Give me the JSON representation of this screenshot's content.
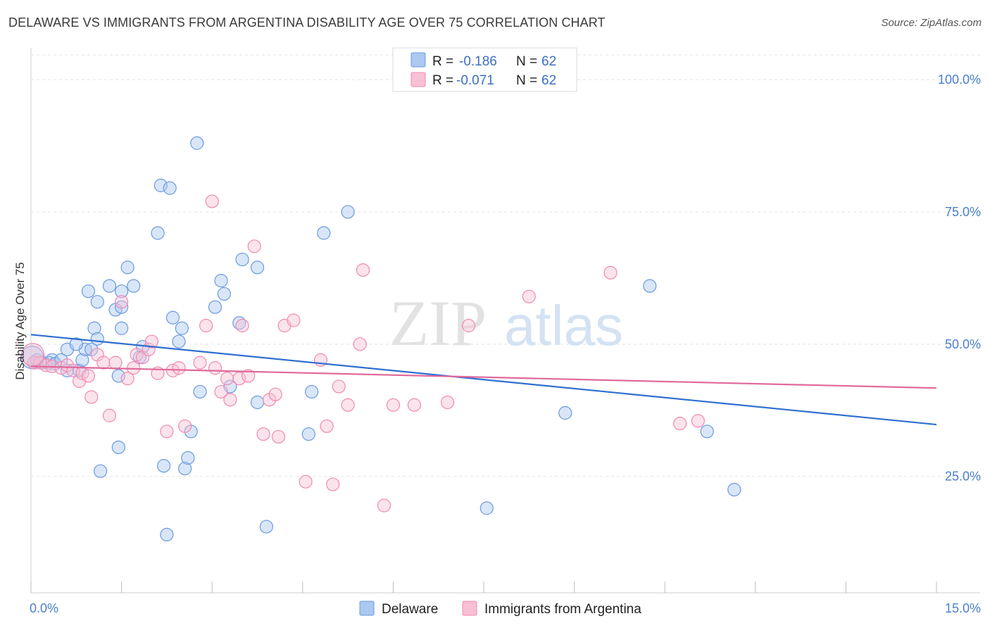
{
  "title": "DELAWARE VS IMMIGRANTS FROM ARGENTINA DISABILITY AGE OVER 75 CORRELATION CHART",
  "source": "Source: ZipAtlas.com",
  "watermark": {
    "zip": "ZIP",
    "atlas": "atlas"
  },
  "chart_data": {
    "type": "scatter",
    "ylabel": "Disability Age Over 75",
    "xlim": [
      0,
      15
    ],
    "ylim": [
      3,
      106
    ],
    "x_tick_labels": [
      {
        "value": 0,
        "label": "0.0%"
      },
      {
        "value": 15,
        "label": "15.0%"
      }
    ],
    "y_tick_labels": [
      {
        "value": 25,
        "label": "25.0%"
      },
      {
        "value": 50,
        "label": "50.0%"
      },
      {
        "value": 75,
        "label": "75.0%"
      },
      {
        "value": 100,
        "label": "100.0%"
      }
    ],
    "legend": [
      {
        "r_label": "R =",
        "r_value": "-0.186",
        "n_label": "N =",
        "n_value": "62"
      },
      {
        "r_label": "R =",
        "r_value": "-0.071",
        "n_label": "N =",
        "n_value": "62"
      }
    ],
    "series": [
      {
        "name": "Delaware",
        "color": "#6a9be0",
        "fill": "#aac8f0",
        "line_color": "#2f6fd0",
        "trend": {
          "x": [
            0,
            15
          ],
          "y": [
            51.8,
            34.8
          ]
        },
        "points": [
          [
            0.05,
            46.5
          ],
          [
            0.1,
            47.0
          ],
          [
            0.2,
            46.5
          ],
          [
            0.3,
            46.5
          ],
          [
            0.35,
            47
          ],
          [
            0.4,
            46.3
          ],
          [
            0.6,
            45
          ],
          [
            0.5,
            47
          ],
          [
            0.6,
            49
          ],
          [
            0.8,
            45
          ],
          [
            0.85,
            47
          ],
          [
            0.9,
            49
          ],
          [
            1.0,
            49
          ],
          [
            0.75,
            50
          ],
          [
            1.05,
            53
          ],
          [
            1.1,
            51
          ],
          [
            1.1,
            58
          ],
          [
            0.95,
            60
          ],
          [
            1.3,
            61
          ],
          [
            1.4,
            56.5
          ],
          [
            1.5,
            53
          ],
          [
            1.5,
            60
          ],
          [
            1.6,
            64.5
          ],
          [
            1.7,
            61
          ],
          [
            1.8,
            47.5
          ],
          [
            1.85,
            49.5
          ],
          [
            1.5,
            57
          ],
          [
            1.45,
            44
          ],
          [
            1.45,
            30.5
          ],
          [
            1.15,
            26
          ],
          [
            2.1,
            71
          ],
          [
            2.15,
            80
          ],
          [
            2.3,
            79.5
          ],
          [
            2.35,
            55
          ],
          [
            2.45,
            50.5
          ],
          [
            2.5,
            53
          ],
          [
            2.2,
            27
          ],
          [
            2.25,
            14
          ],
          [
            2.55,
            26.5
          ],
          [
            2.6,
            28.5
          ],
          [
            2.65,
            33.5
          ],
          [
            2.75,
            88
          ],
          [
            2.8,
            41
          ],
          [
            3.05,
            57
          ],
          [
            3.15,
            62
          ],
          [
            3.2,
            59.5
          ],
          [
            3.3,
            42
          ],
          [
            3.45,
            54
          ],
          [
            3.5,
            66
          ],
          [
            3.75,
            64.5
          ],
          [
            3.75,
            39
          ],
          [
            3.9,
            15.5
          ],
          [
            4.6,
            33
          ],
          [
            4.65,
            41
          ],
          [
            4.85,
            71
          ],
          [
            5.25,
            75
          ],
          [
            7.55,
            19
          ],
          [
            8.85,
            37
          ],
          [
            10.25,
            61
          ],
          [
            11.2,
            33.5
          ],
          [
            11.65,
            22.5
          ],
          [
            0.02,
            47.5
          ]
        ]
      },
      {
        "name": "Immigrants from Argentina",
        "color": "#f08ab0",
        "fill": "#f7c0d4",
        "line_color": "#e0699a",
        "trend": {
          "x": [
            0,
            15
          ],
          "y": [
            45.8,
            41.7
          ]
        },
        "points": [
          [
            0.05,
            46.5
          ],
          [
            0.15,
            46.5
          ],
          [
            0.25,
            46
          ],
          [
            0.35,
            45.8
          ],
          [
            0.5,
            45.5
          ],
          [
            0.6,
            46
          ],
          [
            0.7,
            45
          ],
          [
            0.8,
            43
          ],
          [
            0.85,
            44.5
          ],
          [
            0.95,
            44
          ],
          [
            1.0,
            40
          ],
          [
            1.1,
            48
          ],
          [
            1.2,
            46.5
          ],
          [
            1.3,
            36.5
          ],
          [
            1.4,
            46.5
          ],
          [
            1.5,
            58
          ],
          [
            1.6,
            43.5
          ],
          [
            1.7,
            45.5
          ],
          [
            1.75,
            48
          ],
          [
            1.85,
            47.5
          ],
          [
            1.95,
            49
          ],
          [
            2.0,
            50.5
          ],
          [
            2.1,
            44.5
          ],
          [
            2.25,
            33.5
          ],
          [
            2.35,
            45
          ],
          [
            2.45,
            45.5
          ],
          [
            2.55,
            34.5
          ],
          [
            2.8,
            46.5
          ],
          [
            2.9,
            53.5
          ],
          [
            3.0,
            77
          ],
          [
            3.05,
            45.5
          ],
          [
            3.15,
            41
          ],
          [
            3.25,
            43.5
          ],
          [
            3.3,
            39.5
          ],
          [
            3.45,
            43.5
          ],
          [
            3.5,
            53.5
          ],
          [
            3.6,
            44
          ],
          [
            3.7,
            68.5
          ],
          [
            3.85,
            33
          ],
          [
            3.95,
            39.5
          ],
          [
            4.05,
            40.5
          ],
          [
            4.1,
            32.5
          ],
          [
            4.2,
            53.5
          ],
          [
            4.35,
            54.5
          ],
          [
            4.55,
            24
          ],
          [
            4.8,
            47
          ],
          [
            4.9,
            34.5
          ],
          [
            5.0,
            23.5
          ],
          [
            5.1,
            42
          ],
          [
            5.25,
            38.5
          ],
          [
            5.45,
            50
          ],
          [
            5.5,
            64
          ],
          [
            5.85,
            19.5
          ],
          [
            6.0,
            38.5
          ],
          [
            6.35,
            38.5
          ],
          [
            6.9,
            39
          ],
          [
            7.25,
            53.5
          ],
          [
            8.25,
            59
          ],
          [
            9.6,
            63.5
          ],
          [
            10.75,
            35
          ],
          [
            11.05,
            35.5
          ],
          [
            0.03,
            48
          ]
        ]
      }
    ]
  },
  "bottom_legend": [
    {
      "label": "Delaware"
    },
    {
      "label": "Immigrants from Argentina"
    }
  ]
}
